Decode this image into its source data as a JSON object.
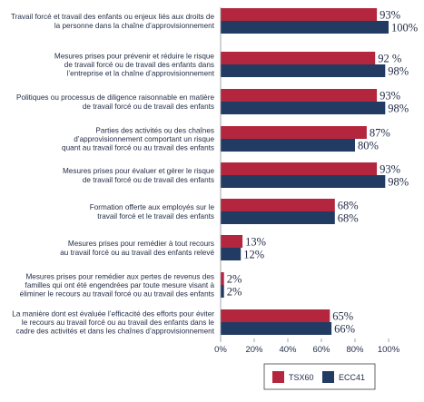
{
  "chart_data": {
    "type": "bar",
    "orientation": "horizontal",
    "categories": [
      [
        "Travail forcé et travail des enfants ou enjeux liés aux droits de",
        "la personne dans la chaîne d’approvisionnement"
      ],
      [
        "Mesures prises pour prévenir et réduire le risque",
        "de travail forcé ou de travail des enfants dans",
        "l’entreprise et la chaîne d’approvisionnement"
      ],
      [
        "Politiques ou processus de diligence raisonnable en matière",
        "de travail forcé ou de travail des enfants"
      ],
      [
        "Parties des activités ou des chaînes",
        "d’approvisionnement comportant un risque",
        "quant au travail forcé ou au travail des enfants"
      ],
      [
        "Mesures prises pour évaluer et gérer le risque",
        "de travail forcé ou de travail des enfants"
      ],
      [
        "Formation offerte aux employés sur le",
        "travail forcé et le travail des enfants"
      ],
      [
        "Mesures prises pour remédier à tout recours",
        "au travail forcé ou au travail des enfants relevé"
      ],
      [
        "Mesures prises pour remédier aux pertes de revenus des",
        "familles qui ont été engendrées par toute mesure visant à",
        "éliminer le recours au travail forcé ou au travail des enfants"
      ],
      [
        "La manière dont est évaluée l’efficacité des efforts pour éviter",
        "le recours au travail forcé ou au travail des enfants dans le",
        "cadre des activités et dans les chaînes d’approvisionnement"
      ]
    ],
    "series": [
      {
        "name": "TSX60",
        "color": "#b3263d",
        "values": [
          93,
          92,
          93,
          87,
          93,
          68,
          13,
          2,
          65
        ],
        "labels": [
          "93%",
          "92 %",
          "93%",
          "87%",
          "93%",
          "68%",
          "13%",
          "2%",
          "65%"
        ]
      },
      {
        "name": "ECC41",
        "color": "#213b62",
        "values": [
          100,
          98,
          98,
          80,
          98,
          68,
          12,
          2,
          66
        ],
        "labels": [
          "100%",
          "98%",
          "98%",
          "80%",
          "98%",
          "68%",
          "12%",
          "2%",
          "66%"
        ]
      }
    ],
    "xlim": [
      0,
      100
    ],
    "xticks": [
      0,
      20,
      40,
      60,
      80,
      100
    ],
    "xtick_labels": [
      "0%",
      "20%",
      "40%",
      "60%",
      "80%",
      "100%"
    ],
    "grid": false,
    "legend_position": "bottom-right"
  }
}
